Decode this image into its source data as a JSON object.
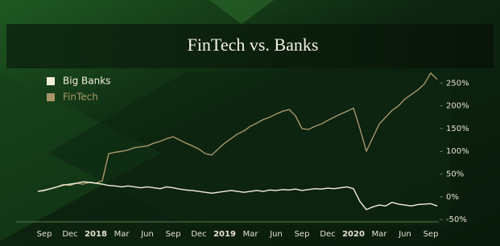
{
  "chart_data": {
    "type": "line",
    "title": "FinTech vs. Banks",
    "categories": [
      null,
      "Sep",
      null,
      null,
      null,
      "Dec",
      null,
      null,
      null,
      "2018",
      null,
      null,
      null,
      "Mar",
      null,
      null,
      null,
      "Jun",
      null,
      null,
      null,
      "Sep",
      null,
      null,
      null,
      "Dec",
      null,
      null,
      null,
      "2019",
      null,
      null,
      null,
      "Mar",
      null,
      null,
      null,
      "Jun",
      null,
      null,
      null,
      "Sep",
      null,
      null,
      null,
      "Dec",
      null,
      null,
      null,
      "2020",
      null,
      null,
      null,
      "Mar",
      null,
      null,
      null,
      "Jun",
      null,
      null,
      null,
      "Sep",
      null
    ],
    "series": [
      {
        "name": "Big Banks",
        "color": "#f3eedb",
        "values": [
          12,
          14,
          18,
          22,
          26,
          28,
          30,
          33,
          32,
          30,
          28,
          25,
          24,
          22,
          24,
          22,
          20,
          22,
          20,
          18,
          22,
          20,
          17,
          15,
          14,
          12,
          10,
          8,
          10,
          12,
          14,
          12,
          10,
          12,
          14,
          12,
          15,
          14,
          16,
          15,
          17,
          14,
          16,
          18,
          17,
          19,
          18,
          20,
          22,
          18,
          -10,
          -28,
          -22,
          -18,
          -20,
          -12,
          -16,
          -18,
          -20,
          -17,
          -16,
          -15,
          -20
        ]
      },
      {
        "name": "FinTech",
        "color": "#a8966a",
        "values": [
          12,
          15,
          18,
          22,
          27,
          25,
          30,
          28,
          32,
          30,
          35,
          95,
          98,
          100,
          103,
          108,
          110,
          112,
          118,
          122,
          128,
          132,
          125,
          118,
          112,
          105,
          95,
          92,
          105,
          118,
          128,
          138,
          145,
          155,
          162,
          170,
          175,
          182,
          188,
          192,
          178,
          150,
          148,
          155,
          160,
          168,
          175,
          182,
          188,
          195,
          150,
          100,
          130,
          160,
          175,
          190,
          200,
          215,
          225,
          235,
          248,
          272,
          258
        ]
      }
    ],
    "ylim": [
      -55,
      270
    ],
    "yticks": [
      {
        "value": -50,
        "label": "-50%"
      },
      {
        "value": 0,
        "label": "0%"
      },
      {
        "value": 50,
        "label": "50%"
      },
      {
        "value": 100,
        "label": "100%"
      },
      {
        "value": 150,
        "label": "150%"
      },
      {
        "value": 200,
        "label": "200%"
      },
      {
        "value": 250,
        "label": "250%"
      }
    ],
    "legend": "top-left"
  }
}
